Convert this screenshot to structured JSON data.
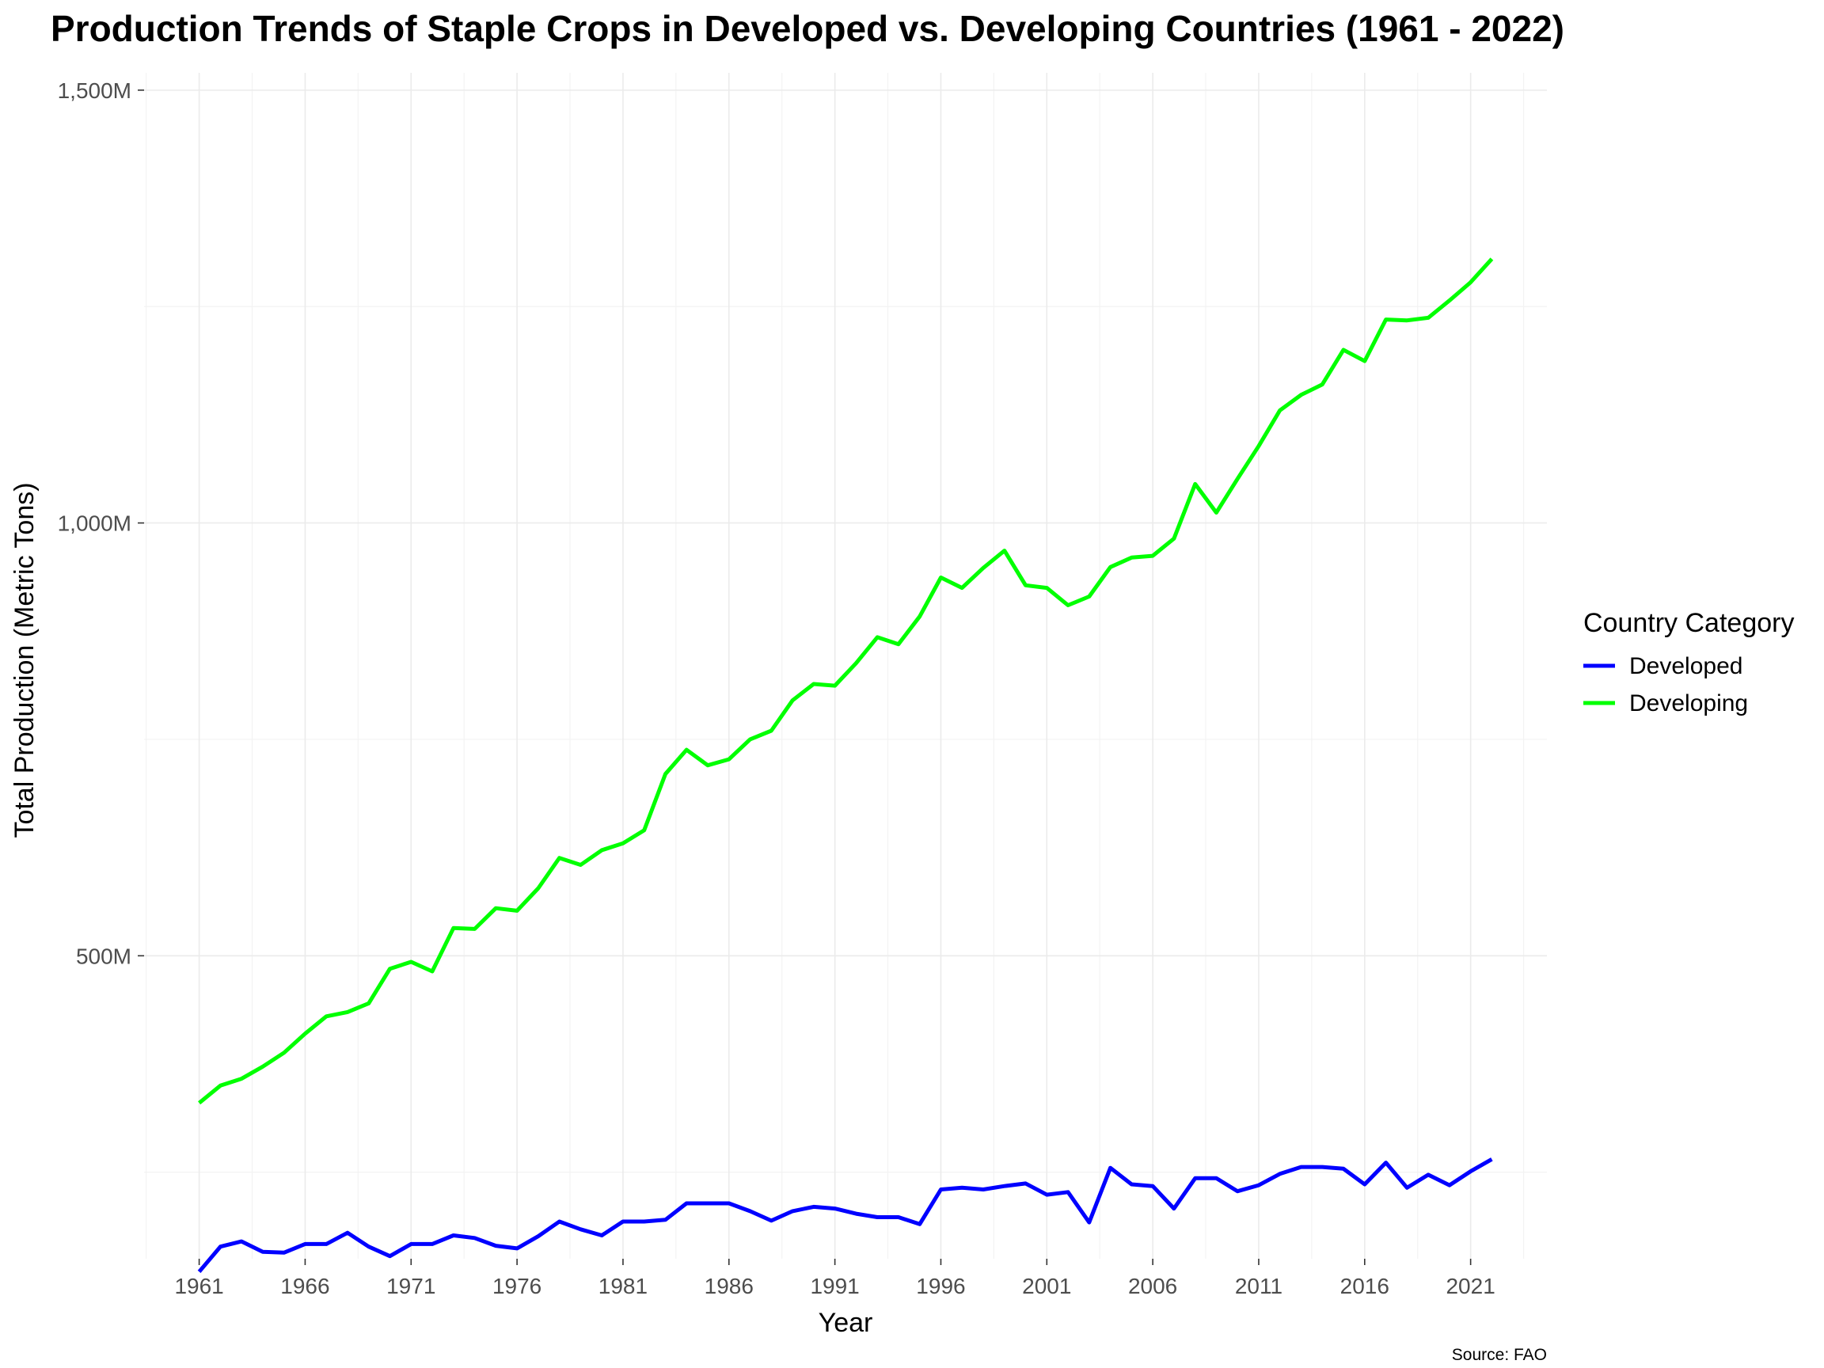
{
  "chart_data": {
    "type": "line",
    "title": "Production Trends of Staple Crops in Developed vs. Developing Countries (1961 - 2022)",
    "xlabel": "Year",
    "ylabel": "Total Production (Metric Tons)",
    "caption": "Source: FAO",
    "legend_title": "Country Category",
    "legend_position": "right",
    "grid": true,
    "xlim": [
      1958.4,
      2024.6
    ],
    "ylim": [
      150000000,
      1520000000
    ],
    "x_ticks": [
      1961,
      1966,
      1971,
      1976,
      1981,
      1986,
      1991,
      1996,
      2001,
      2006,
      2011,
      2016,
      2021
    ],
    "x_tick_labels": [
      "1961",
      "1966",
      "1971",
      "1976",
      "1981",
      "1986",
      "1991",
      "1996",
      "2001",
      "2006",
      "2011",
      "2016",
      "2021"
    ],
    "y_ticks": [
      500000000,
      1000000000,
      1500000000
    ],
    "y_tick_labels": [
      "500M",
      "1,000M",
      "1,500M"
    ],
    "x": [
      1961,
      1962,
      1963,
      1964,
      1965,
      1966,
      1967,
      1968,
      1969,
      1970,
      1971,
      1972,
      1973,
      1974,
      1975,
      1976,
      1977,
      1978,
      1979,
      1980,
      1981,
      1982,
      1983,
      1984,
      1985,
      1986,
      1987,
      1988,
      1989,
      1990,
      1991,
      1992,
      1993,
      1994,
      1995,
      1996,
      1997,
      1998,
      1999,
      2000,
      2001,
      2002,
      2003,
      2004,
      2005,
      2006,
      2007,
      2008,
      2009,
      2010,
      2011,
      2012,
      2013,
      2014,
      2015,
      2016,
      2017,
      2018,
      2019,
      2020,
      2021,
      2022
    ],
    "series": [
      {
        "name": "Developed",
        "color": "#0000ff",
        "values": [
          135,
          164,
          170,
          158,
          157,
          167,
          167,
          180,
          164,
          153,
          167,
          167,
          177,
          174,
          165,
          162,
          176,
          193,
          184,
          177,
          193,
          193,
          195,
          214,
          214,
          214,
          205,
          194,
          205,
          210,
          208,
          202,
          198,
          198,
          190,
          230,
          232,
          230,
          234,
          237,
          224,
          227,
          192,
          255,
          236,
          234,
          208,
          243,
          243,
          228,
          235,
          248,
          256,
          256,
          254,
          236,
          261,
          232,
          247,
          235,
          251,
          265
        ]
      },
      {
        "name": "Developing",
        "color": "#00ff00",
        "values": [
          330,
          350,
          358,
          372,
          388,
          410,
          430,
          435,
          445,
          485,
          493,
          482,
          532,
          531,
          555,
          552,
          578,
          613,
          605,
          622,
          630,
          645,
          710,
          738,
          720,
          727,
          750,
          760,
          795,
          814,
          812,
          838,
          868,
          860,
          892,
          937,
          925,
          948,
          968,
          928,
          925,
          905,
          915,
          949,
          960,
          962,
          982,
          1045,
          1012,
          1051,
          1089,
          1130,
          1148,
          1160,
          1200,
          1187,
          1235,
          1234,
          1237,
          1257,
          1278,
          1305
        ]
      }
    ]
  }
}
